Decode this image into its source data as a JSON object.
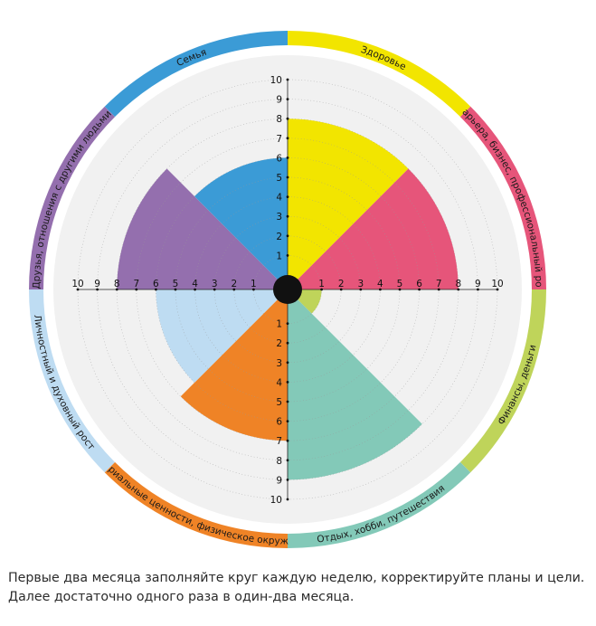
{
  "chart_data": {
    "type": "polar-area",
    "scale": {
      "min": 0,
      "max": 10,
      "ticks": [
        1,
        2,
        3,
        4,
        5,
        6,
        7,
        8,
        9,
        10
      ]
    },
    "grid": true,
    "sectors": [
      {
        "label": "Здоровье",
        "value": 8,
        "color": "#f2e500",
        "ring_color": "#f2e500"
      },
      {
        "label": "Карьера, бизнес, профессиональный рост",
        "value": 8,
        "color": "#e6557a",
        "ring_color": "#e6557a"
      },
      {
        "label": "Финансы, деньги",
        "value": 1,
        "color": "#bfd45a",
        "ring_color": "#bfd45a"
      },
      {
        "label": "Отдых, хобби, путешествия",
        "value": 9,
        "color": "#83c9b8",
        "ring_color": "#83c9b8"
      },
      {
        "label": "Материальные ценности, физическое окружение",
        "value": 7,
        "color": "#ef8326",
        "ring_color": "#ef8326"
      },
      {
        "label": "Личностный и духовный рост",
        "value": 6,
        "color": "#bedcf2",
        "ring_color": "#bedcf2"
      },
      {
        "label": "Друзья, отношения с другими людьми",
        "value": 8,
        "color": "#946fae",
        "ring_color": "#946fae"
      },
      {
        "label": "Семья",
        "value": 6,
        "color": "#3b9bd6",
        "ring_color": "#3b9bd6"
      }
    ]
  },
  "caption": {
    "line1": "Первые два месяца заполняйте круг каждую неделю, корректируйте планы и цели.",
    "line2": "Далее достаточно одного раза в один-два месяца."
  }
}
